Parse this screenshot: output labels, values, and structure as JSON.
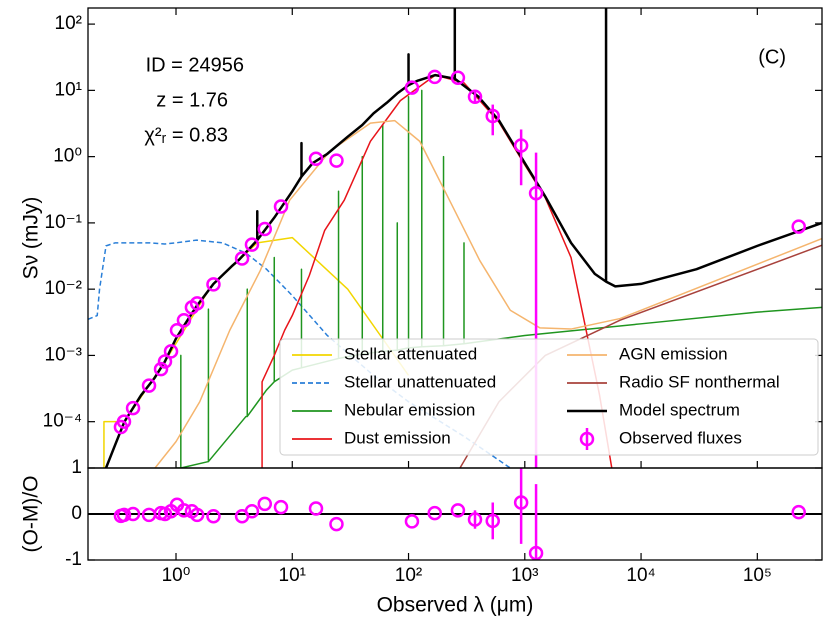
{
  "chart_data": [
    {
      "type": "line",
      "annotations": [
        "ID = 24956",
        "z = 1.76",
        "χ²ᵣ = 0.83",
        "(C)"
      ],
      "ylabel": "Sν (mJy)",
      "xscale": "log",
      "yscale": "log",
      "xlim": [
        0.175,
        360000
      ],
      "ylim": [
        2e-05,
        175
      ],
      "xticks": [
        1,
        10,
        100,
        1000,
        10000,
        100000
      ],
      "yticks": [
        {
          "value": 0.0001,
          "label": "10⁻⁴"
        },
        {
          "value": 0.001,
          "label": "10⁻³"
        },
        {
          "value": 0.01,
          "label": "10⁻²"
        },
        {
          "value": 0.1,
          "label": "10⁻¹"
        },
        {
          "value": 1,
          "label": "10⁰"
        },
        {
          "value": 10,
          "label": "10¹"
        },
        {
          "value": 100,
          "label": "10²"
        }
      ],
      "legend": "lower right",
      "series": [
        {
          "name": "Stellar attenuated",
          "color": "#f2d600",
          "x": [
            0.24,
            0.24,
            0.36,
            0.8,
            2,
            5,
            10,
            30,
            100
          ],
          "values": [
            2e-05,
            0.0001,
            0.0001,
            0.0008,
            0.011,
            0.05,
            0.06,
            0.01,
            0.0005
          ]
        },
        {
          "name": "Stellar unattenuated",
          "color": "#2a7fd8",
          "dashed": true,
          "x": [
            0.175,
            0.21,
            0.22,
            0.25,
            0.3,
            0.4,
            0.6,
            0.8,
            1.0,
            1.5,
            2.5,
            4,
            6,
            10,
            20,
            50,
            100,
            300,
            750
          ],
          "values": [
            0.0035,
            0.004,
            0.01,
            0.045,
            0.05,
            0.05,
            0.05,
            0.048,
            0.05,
            0.055,
            0.05,
            0.035,
            0.02,
            0.008,
            0.002,
            0.0005,
            0.0002,
            6e-05,
            2e-05
          ]
        },
        {
          "name": "Nebular emission",
          "color": "#1f951f",
          "x": [
            1.0,
            1.1,
            1.1,
            1.1,
            1.9,
            1.9,
            1.9,
            4,
            4.1,
            4.1,
            4.1,
            6,
            7,
            7,
            7,
            10,
            12,
            12,
            12,
            25,
            25,
            25,
            40,
            40,
            40,
            60,
            60,
            60,
            80,
            80,
            80,
            100,
            100,
            100,
            130,
            130,
            130,
            200,
            200,
            200,
            300,
            300,
            300,
            1000,
            10000,
            100000,
            360000
          ],
          "values": [
            2e-05,
            2e-05,
            0.001,
            2e-05,
            2.5e-05,
            0.005,
            2.5e-05,
            0.00012,
            0.00012,
            0.01,
            0.00012,
            0.0003,
            0.0004,
            0.03,
            0.0004,
            0.0006,
            0.00065,
            0.02,
            0.00065,
            0.0009,
            0.3,
            0.0009,
            0.00105,
            1,
            0.00105,
            0.00115,
            3,
            0.00115,
            0.0012,
            0.1,
            0.0012,
            0.0013,
            8,
            0.0013,
            0.00135,
            10,
            0.00135,
            0.0014,
            1,
            0.0014,
            0.0015,
            0.05,
            0.0015,
            0.002,
            0.003,
            0.0045,
            0.0053
          ]
        },
        {
          "name": "Dust emission",
          "color": "#e8141a",
          "x": [
            5.5,
            5.5,
            7,
            8.6,
            10,
            14,
            19,
            28,
            47,
            85,
            170,
            300,
            600,
            1000,
            1500,
            2500,
            4400,
            5600
          ],
          "values": [
            2e-05,
            0.0004,
            0.001,
            0.0024,
            0.004,
            0.016,
            0.077,
            0.22,
            1.7,
            7,
            17,
            13,
            3.3,
            0.75,
            0.24,
            0.03,
            0.00025,
            2e-05
          ]
        },
        {
          "name": "AGN emission",
          "color": "#f5b56e",
          "x": [
            0.66,
            1,
            1.6,
            2.9,
            5.3,
            9.5,
            21,
            47,
            76,
            125,
            225,
            410,
            750,
            1350,
            2500,
            6600,
            360000
          ],
          "values": [
            2e-05,
            5e-05,
            0.0002,
            0.0024,
            0.019,
            0.22,
            1.2,
            3.2,
            3.5,
            1.7,
            0.22,
            0.027,
            0.0048,
            0.0026,
            0.0025,
            0.0036,
            0.058
          ]
        },
        {
          "name": "Radio SF nonthermal",
          "color": "#a8423c",
          "x": [
            277,
            600,
            1500,
            6600,
            360000
          ],
          "values": [
            2e-05,
            0.0002,
            0.001,
            0.0034,
            0.046
          ]
        },
        {
          "name": "Model spectrum",
          "color": "#000000",
          "width": 2.5,
          "x": [
            0.25,
            0.3,
            0.36,
            0.5,
            0.65,
            0.8,
            1.0,
            1.2,
            1.5,
            2.1,
            3.0,
            3.5,
            4.5,
            5,
            5,
            5,
            7,
            10,
            12,
            12,
            12,
            15,
            20,
            30,
            40,
            50,
            65,
            80,
            100,
            100,
            100,
            120,
            170,
            250,
            250,
            250,
            400,
            600,
            1000,
            1500,
            2500,
            4000,
            5000,
            5000,
            5000,
            6000,
            10000,
            30000,
            100000,
            360000
          ],
          "values": [
            2e-05,
            4.5e-05,
            0.0001,
            0.00025,
            0.00045,
            0.0008,
            0.0018,
            0.003,
            0.0055,
            0.012,
            0.022,
            0.028,
            0.045,
            0.055,
            0.15,
            0.055,
            0.12,
            0.3,
            0.5,
            1.6,
            0.5,
            0.8,
            1.1,
            2,
            3,
            4.5,
            6.5,
            9,
            12,
            35,
            12,
            14,
            17,
            15,
            175,
            15,
            8,
            3.5,
            0.8,
            0.25,
            0.05,
            0.017,
            0.013,
            175,
            0.013,
            0.011,
            0.012,
            0.02,
            0.045,
            0.1
          ]
        },
        {
          "name": "Observed fluxes",
          "color": "#ff00ff",
          "style": "errorbar",
          "x": [
            0.336,
            0.357,
            0.427,
            0.586,
            0.743,
            0.804,
            0.906,
            1.02,
            1.17,
            1.37,
            1.52,
            2.1,
            3.7,
            4.5,
            5.8,
            8.0,
            16,
            24,
            107,
            168,
            266,
            373,
            530,
            930,
            1250,
            227000
          ],
          "values": [
            8.3e-05,
            0.0001,
            0.00016,
            0.00035,
            0.00062,
            0.00081,
            0.00115,
            0.0024,
            0.0034,
            0.0053,
            0.0061,
            0.0118,
            0.029,
            0.047,
            0.081,
            0.177,
            0.93,
            0.87,
            11,
            16,
            15.5,
            8,
            4.1,
            1.47,
            0.28,
            0.088
          ],
          "errors": [
            0,
            0,
            0,
            0,
            0,
            0,
            0,
            0,
            0,
            0,
            0,
            0,
            0,
            0,
            0,
            0,
            0,
            0,
            0,
            0,
            0,
            1.5,
            2.0,
            1.1,
            0.87,
            0
          ]
        }
      ]
    },
    {
      "type": "scatter",
      "xlabel": "Observed λ (μm)",
      "ylabel": "(O-M)/O",
      "xscale": "log",
      "xlim": [
        0.175,
        360000
      ],
      "ylim": [
        -1,
        1
      ],
      "xticks": [
        {
          "value": 1,
          "label": "10⁰"
        },
        {
          "value": 10,
          "label": "10¹"
        },
        {
          "value": 100,
          "label": "10²"
        },
        {
          "value": 1000,
          "label": "10³"
        },
        {
          "value": 10000,
          "label": "10⁴"
        },
        {
          "value": 100000,
          "label": "10⁵"
        }
      ],
      "yticks": [
        -1,
        0,
        1
      ],
      "hline": 0,
      "color": "#ff00ff",
      "x": [
        0.336,
        0.357,
        0.427,
        0.586,
        0.743,
        0.804,
        0.906,
        1.02,
        1.17,
        1.37,
        1.52,
        2.1,
        3.7,
        4.5,
        5.8,
        8.0,
        16,
        24,
        107,
        168,
        266,
        373,
        530,
        930,
        1250,
        227000
      ],
      "values": [
        -0.04,
        -0.02,
        0,
        -0.02,
        0.02,
        0,
        0.06,
        0.2,
        0.08,
        0.06,
        -0.02,
        -0.05,
        -0.05,
        0.06,
        0.22,
        0.15,
        0.12,
        -0.22,
        -0.16,
        0.02,
        0.08,
        -0.12,
        -0.15,
        0.25,
        -0.85,
        0.04
      ],
      "errors": [
        0,
        0,
        0,
        0,
        0,
        0,
        0,
        0,
        0,
        0,
        0,
        0,
        0,
        0,
        0,
        0,
        0,
        0,
        0,
        0,
        0,
        0.2,
        0.4,
        0.9,
        1.5,
        0
      ]
    }
  ]
}
